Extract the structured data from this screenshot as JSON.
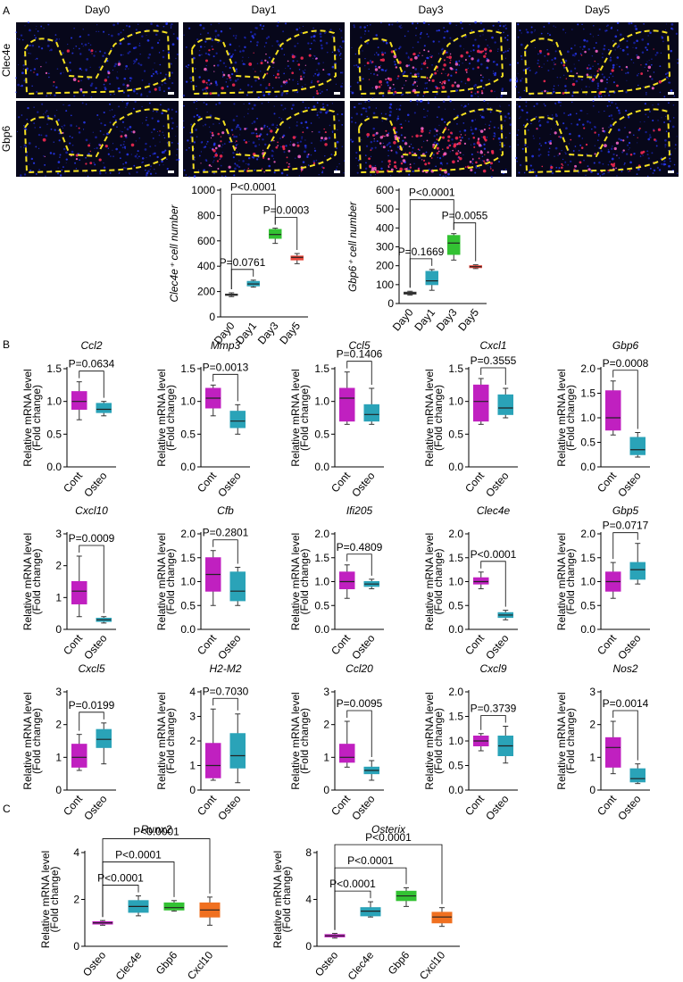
{
  "panel_labels": [
    "A",
    "B",
    "C"
  ],
  "microscopy": {
    "columns": [
      "Day0",
      "Day1",
      "Day3",
      "Day5"
    ],
    "rows": [
      "Clec4e",
      "Gbp6"
    ]
  },
  "chart_data": [
    {
      "type": "box",
      "ylabel": "Clec4e⁺ cell number",
      "categories": [
        "Day0",
        "Day1",
        "Day3",
        "Day5"
      ],
      "colors": [
        "#444444",
        "#2aa3b8",
        "#33c233",
        "#e8463a"
      ],
      "ylim": [
        0,
        1000
      ],
      "yticks": [
        0,
        200,
        400,
        600,
        800,
        1000
      ],
      "boxes": [
        {
          "min": 160,
          "q1": 170,
          "median": 175,
          "q3": 180,
          "max": 190
        },
        {
          "min": 235,
          "q1": 245,
          "median": 260,
          "q3": 280,
          "max": 290
        },
        {
          "min": 580,
          "q1": 620,
          "median": 650,
          "q3": 690,
          "max": 700
        },
        {
          "min": 420,
          "q1": 450,
          "median": 470,
          "q3": 480,
          "max": 500
        }
      ],
      "comparisons": [
        {
          "label": "P<0.0001",
          "between": [
            "Day0",
            "Day3"
          ]
        },
        {
          "label": "P=0.0761",
          "between": [
            "Day0",
            "Day1"
          ]
        },
        {
          "label": "P=0.0003",
          "between": [
            "Day3",
            "Day5"
          ]
        }
      ]
    },
    {
      "type": "box",
      "ylabel": "Gbp6⁺ cell number",
      "categories": [
        "Day0",
        "Day1",
        "Day3",
        "Day5"
      ],
      "colors": [
        "#444444",
        "#2aa3b8",
        "#33c233",
        "#e8463a"
      ],
      "ylim": [
        0,
        600
      ],
      "yticks": [
        0,
        100,
        200,
        300,
        400,
        500,
        600
      ],
      "boxes": [
        {
          "min": 45,
          "q1": 50,
          "median": 55,
          "q3": 60,
          "max": 65
        },
        {
          "min": 70,
          "q1": 100,
          "median": 120,
          "q3": 170,
          "max": 180
        },
        {
          "min": 230,
          "q1": 260,
          "median": 320,
          "q3": 360,
          "max": 370
        },
        {
          "min": 185,
          "q1": 190,
          "median": 195,
          "q3": 200,
          "max": 205
        }
      ],
      "comparisons": [
        {
          "label": "P<0.0001",
          "between": [
            "Day0",
            "Day3"
          ]
        },
        {
          "label": "P=0.1669",
          "between": [
            "Day0",
            "Day1"
          ]
        },
        {
          "label": "P=0.0055",
          "between": [
            "Day3",
            "Day5"
          ]
        }
      ]
    },
    {
      "type": "box",
      "title": "Ccl2",
      "ylabel": "Relative mRNA level",
      "ylabel_note": "(Fold change)",
      "categories": [
        "Cont",
        "Osteo"
      ],
      "colors": [
        "#c020c0",
        "#2aa3b8"
      ],
      "ylim": [
        0,
        1.5
      ],
      "yticks": [
        {
          "value": 0,
          "label": "0.0"
        },
        0.5,
        {
          "value": 1,
          "label": "1.0"
        },
        1.5
      ],
      "boxes": [
        {
          "min": 0.72,
          "q1": 0.88,
          "median": 1.0,
          "q3": 1.15,
          "max": 1.3
        },
        {
          "min": 0.78,
          "q1": 0.83,
          "median": 0.88,
          "q3": 0.97,
          "max": 1.0
        }
      ],
      "comparisons": [
        {
          "label": "P=0.0634",
          "between": [
            "Cont",
            "Osteo"
          ]
        }
      ]
    },
    {
      "type": "box",
      "title": "Mmp3",
      "ylabel": "Relative mRNA level",
      "ylabel_note": "(Fold change)",
      "categories": [
        "Cont",
        "Osteo"
      ],
      "colors": [
        "#c020c0",
        "#2aa3b8"
      ],
      "ylim": [
        0,
        1.5
      ],
      "yticks": [
        {
          "value": 0,
          "label": "0.0"
        },
        0.5,
        {
          "value": 1,
          "label": "1.0"
        },
        1.5
      ],
      "boxes": [
        {
          "min": 0.78,
          "q1": 0.9,
          "median": 1.05,
          "q3": 1.2,
          "max": 1.25
        },
        {
          "min": 0.5,
          "q1": 0.6,
          "median": 0.7,
          "q3": 0.85,
          "max": 0.95
        }
      ],
      "comparisons": [
        {
          "label": "P=0.0013",
          "between": [
            "Cont",
            "Osteo"
          ]
        }
      ]
    },
    {
      "type": "box",
      "title": "Ccl5",
      "ylabel": "Relative mRNA level",
      "ylabel_note": "(Fold change)",
      "categories": [
        "Cont",
        "Osteo"
      ],
      "colors": [
        "#c020c0",
        "#2aa3b8"
      ],
      "ylim": [
        0,
        1.5
      ],
      "yticks": [
        {
          "value": 0,
          "label": "0.0"
        },
        0.5,
        {
          "value": 1,
          "label": "1.0"
        },
        1.5
      ],
      "boxes": [
        {
          "min": 0.65,
          "q1": 0.7,
          "median": 1.05,
          "q3": 1.2,
          "max": 1.45
        },
        {
          "min": 0.65,
          "q1": 0.7,
          "median": 0.8,
          "q3": 0.95,
          "max": 1.2
        }
      ],
      "comparisons": [
        {
          "label": "P=0.1406",
          "between": [
            "Cont",
            "Osteo"
          ]
        }
      ]
    },
    {
      "type": "box",
      "title": "Cxcl1",
      "ylabel": "Relative mRNA level",
      "ylabel_note": "(Fold change)",
      "categories": [
        "Cont",
        "Osteo"
      ],
      "colors": [
        "#c020c0",
        "#2aa3b8"
      ],
      "ylim": [
        0,
        1.5
      ],
      "yticks": [
        {
          "value": 0,
          "label": "0.0"
        },
        0.5,
        {
          "value": 1,
          "label": "1.0"
        },
        1.5
      ],
      "boxes": [
        {
          "min": 0.65,
          "q1": 0.7,
          "median": 1.0,
          "q3": 1.25,
          "max": 1.35
        },
        {
          "min": 0.75,
          "q1": 0.8,
          "median": 0.9,
          "q3": 1.1,
          "max": 1.2
        }
      ],
      "comparisons": [
        {
          "label": "P=0.3555",
          "between": [
            "Cont",
            "Osteo"
          ]
        }
      ]
    },
    {
      "type": "box",
      "title": "Gbp6",
      "ylabel": "Relative mRNA level",
      "ylabel_note": "(Fold change)",
      "categories": [
        "Cont",
        "Osteo"
      ],
      "colors": [
        "#c020c0",
        "#2aa3b8"
      ],
      "ylim": [
        0,
        2
      ],
      "yticks": [
        {
          "value": 0,
          "label": "0.0"
        },
        0.5,
        {
          "value": 1,
          "label": "1.0"
        },
        1.5,
        {
          "value": 2,
          "label": "2.0"
        }
      ],
      "boxes": [
        {
          "min": 0.65,
          "q1": 0.75,
          "median": 1.0,
          "q3": 1.55,
          "max": 1.75
        },
        {
          "min": 0.2,
          "q1": 0.25,
          "median": 0.35,
          "q3": 0.6,
          "max": 0.7
        }
      ],
      "comparisons": [
        {
          "label": "P=0.0008",
          "between": [
            "Cont",
            "Osteo"
          ]
        }
      ]
    },
    {
      "type": "box",
      "title": "Cxcl10",
      "ylabel": "Relative mRNA level",
      "ylabel_note": "(Fold change)",
      "categories": [
        "Cont",
        "Osteo"
      ],
      "colors": [
        "#c020c0",
        "#2aa3b8"
      ],
      "ylim": [
        0,
        3
      ],
      "yticks": [
        0,
        1,
        2,
        3
      ],
      "boxes": [
        {
          "min": 0.4,
          "q1": 0.8,
          "median": 1.2,
          "q3": 1.5,
          "max": 2.3
        },
        {
          "min": 0.2,
          "q1": 0.25,
          "median": 0.3,
          "q3": 0.35,
          "max": 0.4
        }
      ],
      "comparisons": [
        {
          "label": "P=0.0009",
          "between": [
            "Cont",
            "Osteo"
          ]
        }
      ]
    },
    {
      "type": "box",
      "title": "Cfb",
      "ylabel": "Relative mRNA level",
      "ylabel_note": "(Fold change)",
      "categories": [
        "Cont",
        "Osteo"
      ],
      "colors": [
        "#c020c0",
        "#2aa3b8"
      ],
      "ylim": [
        0,
        2
      ],
      "yticks": [
        {
          "value": 0,
          "label": "0.0"
        },
        0.5,
        {
          "value": 1,
          "label": "1.0"
        },
        1.5,
        {
          "value": 2,
          "label": "2.0"
        }
      ],
      "boxes": [
        {
          "min": 0.5,
          "q1": 0.8,
          "median": 1.15,
          "q3": 1.5,
          "max": 1.65
        },
        {
          "min": 0.5,
          "q1": 0.6,
          "median": 0.8,
          "q3": 1.2,
          "max": 1.3
        }
      ],
      "comparisons": [
        {
          "label": "P=0.2801",
          "between": [
            "Cont",
            "Osteo"
          ]
        }
      ]
    },
    {
      "type": "box",
      "title": "Ifi205",
      "ylabel": "Relative mRNA level",
      "ylabel_note": "(Fold change)",
      "categories": [
        "Cont",
        "Osteo"
      ],
      "colors": [
        "#c020c0",
        "#2aa3b8"
      ],
      "ylim": [
        0,
        2
      ],
      "yticks": [
        {
          "value": 0,
          "label": "0.0"
        },
        0.5,
        {
          "value": 1,
          "label": "1.0"
        },
        1.5,
        {
          "value": 2,
          "label": "2.0"
        }
      ],
      "boxes": [
        {
          "min": 0.65,
          "q1": 0.85,
          "median": 1.0,
          "q3": 1.2,
          "max": 1.35
        },
        {
          "min": 0.85,
          "q1": 0.9,
          "median": 0.95,
          "q3": 1.0,
          "max": 1.05
        }
      ],
      "comparisons": [
        {
          "label": "P=0.4809",
          "between": [
            "Cont",
            "Osteo"
          ]
        }
      ]
    },
    {
      "type": "box",
      "title": "Clec4e",
      "ylabel": "Relative mRNA level",
      "ylabel_note": "(Fold change)",
      "categories": [
        "Cont",
        "Osteo"
      ],
      "colors": [
        "#c020c0",
        "#2aa3b8"
      ],
      "ylim": [
        0,
        2
      ],
      "yticks": [
        {
          "value": 0,
          "label": "0.0"
        },
        0.5,
        {
          "value": 1,
          "label": "1.0"
        },
        1.5,
        {
          "value": 2,
          "label": "2.0"
        }
      ],
      "boxes": [
        {
          "min": 0.85,
          "q1": 0.95,
          "median": 1.0,
          "q3": 1.08,
          "max": 1.2
        },
        {
          "min": 0.2,
          "q1": 0.25,
          "median": 0.3,
          "q3": 0.35,
          "max": 0.4
        }
      ],
      "comparisons": [
        {
          "label": "P<0.0001",
          "between": [
            "Cont",
            "Osteo"
          ]
        }
      ]
    },
    {
      "type": "box",
      "title": "Gbp5",
      "ylabel": "Relative mRNA level",
      "ylabel_note": "(Fold change)",
      "categories": [
        "Cont",
        "Osteo"
      ],
      "colors": [
        "#c020c0",
        "#2aa3b8"
      ],
      "ylim": [
        0,
        2
      ],
      "yticks": [
        {
          "value": 0,
          "label": "0.0"
        },
        0.5,
        {
          "value": 1,
          "label": "1.0"
        },
        1.5,
        {
          "value": 2,
          "label": "2.0"
        }
      ],
      "boxes": [
        {
          "min": 0.65,
          "q1": 0.8,
          "median": 1.0,
          "q3": 1.2,
          "max": 1.4
        },
        {
          "min": 0.95,
          "q1": 1.05,
          "median": 1.25,
          "q3": 1.4,
          "max": 1.8
        }
      ],
      "comparisons": [
        {
          "label": "P=0.0717",
          "between": [
            "Cont",
            "Osteo"
          ]
        }
      ]
    },
    {
      "type": "box",
      "title": "Cxcl5",
      "ylabel": "Relative mRNA level",
      "ylabel_note": "(Fold change)",
      "categories": [
        "Cont",
        "Osteo"
      ],
      "colors": [
        "#c020c0",
        "#2aa3b8"
      ],
      "ylim": [
        0,
        3
      ],
      "yticks": [
        0,
        1,
        2,
        3
      ],
      "boxes": [
        {
          "min": 0.6,
          "q1": 0.7,
          "median": 1.0,
          "q3": 1.4,
          "max": 1.7
        },
        {
          "min": 0.8,
          "q1": 1.3,
          "median": 1.55,
          "q3": 1.85,
          "max": 2.05
        }
      ],
      "comparisons": [
        {
          "label": "P=0.0199",
          "between": [
            "Cont",
            "Osteo"
          ]
        }
      ]
    },
    {
      "type": "box",
      "title": "H2-M2",
      "ylabel": "Relative mRNA level",
      "ylabel_note": "(Fold change)",
      "categories": [
        "Cont",
        "Osteo"
      ],
      "colors": [
        "#c020c0",
        "#2aa3b8"
      ],
      "ylim": [
        0,
        4
      ],
      "yticks": [
        0,
        1,
        2,
        3,
        4
      ],
      "boxes": [
        {
          "min": 0.4,
          "q1": 0.5,
          "median": 1.0,
          "q3": 1.9,
          "max": 3.3
        },
        {
          "min": 0.3,
          "q1": 0.9,
          "median": 1.4,
          "q3": 2.3,
          "max": 3.1
        }
      ],
      "comparisons": [
        {
          "label": "P=0.7030",
          "between": [
            "Cont",
            "Osteo"
          ]
        }
      ]
    },
    {
      "type": "box",
      "title": "Ccl20",
      "ylabel": "Relative mRNA level",
      "ylabel_note": "(Fold change)",
      "categories": [
        "Cont",
        "Osteo"
      ],
      "colors": [
        "#c020c0",
        "#2aa3b8"
      ],
      "ylim": [
        0,
        3
      ],
      "yticks": [
        0,
        1,
        2,
        3
      ],
      "boxes": [
        {
          "min": 0.7,
          "q1": 0.85,
          "median": 1.0,
          "q3": 1.4,
          "max": 2.1
        },
        {
          "min": 0.3,
          "q1": 0.5,
          "median": 0.6,
          "q3": 0.7,
          "max": 0.9
        }
      ],
      "comparisons": [
        {
          "label": "P=0.0095",
          "between": [
            "Cont",
            "Osteo"
          ]
        }
      ]
    },
    {
      "type": "box",
      "title": "Cxcl9",
      "ylabel": "Relative mRNA level",
      "ylabel_note": "(Fold change)",
      "categories": [
        "Cont",
        "Osteo"
      ],
      "colors": [
        "#c020c0",
        "#2aa3b8"
      ],
      "ylim": [
        0,
        2
      ],
      "yticks": [
        {
          "value": 0,
          "label": "0.0"
        },
        0.5,
        {
          "value": 1,
          "label": "1.0"
        },
        1.5,
        {
          "value": 2,
          "label": "2.0"
        }
      ],
      "boxes": [
        {
          "min": 0.8,
          "q1": 0.9,
          "median": 1.0,
          "q3": 1.1,
          "max": 1.15
        },
        {
          "min": 0.55,
          "q1": 0.7,
          "median": 0.9,
          "q3": 1.1,
          "max": 1.3
        }
      ],
      "comparisons": [
        {
          "label": "P=0.3739",
          "between": [
            "Cont",
            "Osteo"
          ]
        }
      ]
    },
    {
      "type": "box",
      "title": "Nos2",
      "ylabel": "Relative mRNA level",
      "ylabel_note": "(Fold change)",
      "categories": [
        "Cont",
        "Osteo"
      ],
      "colors": [
        "#c020c0",
        "#2aa3b8"
      ],
      "ylim": [
        0,
        3
      ],
      "yticks": [
        0,
        1,
        2,
        3
      ],
      "boxes": [
        {
          "min": 0.5,
          "q1": 0.7,
          "median": 1.3,
          "q3": 1.6,
          "max": 2.1
        },
        {
          "min": 0.2,
          "q1": 0.25,
          "median": 0.35,
          "q3": 0.65,
          "max": 0.8
        }
      ],
      "comparisons": [
        {
          "label": "P=0.0014",
          "between": [
            "Cont",
            "Osteo"
          ]
        }
      ]
    },
    {
      "type": "box",
      "title": "Runx2",
      "ylabel": "Relative mRNA level",
      "ylabel_note": "(Fold change)",
      "categories": [
        "Osteo",
        "Clec4e",
        "Gbp6",
        "Cxcl10"
      ],
      "colors": [
        "#c020c0",
        "#2aa3b8",
        "#33c233",
        "#f07020"
      ],
      "ylim": [
        0,
        4
      ],
      "yticks": [
        0,
        2,
        4
      ],
      "boxes": [
        {
          "min": 0.9,
          "q1": 0.95,
          "median": 1.0,
          "q3": 1.05,
          "max": 1.1
        },
        {
          "min": 1.3,
          "q1": 1.45,
          "median": 1.7,
          "q3": 1.95,
          "max": 2.15
        },
        {
          "min": 1.5,
          "q1": 1.55,
          "median": 1.65,
          "q3": 1.85,
          "max": 1.95
        },
        {
          "min": 0.9,
          "q1": 1.25,
          "median": 1.55,
          "q3": 1.85,
          "max": 2.1
        }
      ],
      "comparisons": [
        {
          "label": "P<0.0001",
          "between": [
            "Osteo",
            "Clec4e"
          ]
        },
        {
          "label": "P<0.0001",
          "between": [
            "Osteo",
            "Gbp6"
          ]
        },
        {
          "label": "P<0.0001",
          "between": [
            "Osteo",
            "Cxcl10"
          ]
        }
      ]
    },
    {
      "type": "box",
      "title": "Osterix",
      "ylabel": "Relative mRNA level",
      "ylabel_note": "(Fold change)",
      "categories": [
        "Osteo",
        "Clec4e",
        "Gbp6",
        "Cxcl10"
      ],
      "colors": [
        "#c020c0",
        "#2aa3b8",
        "#33c233",
        "#f07020"
      ],
      "ylim": [
        0,
        8
      ],
      "yticks": [
        0,
        4,
        8
      ],
      "boxes": [
        {
          "min": 0.7,
          "q1": 0.8,
          "median": 0.9,
          "q3": 1.0,
          "max": 1.1
        },
        {
          "min": 2.5,
          "q1": 2.6,
          "median": 3.0,
          "q3": 3.3,
          "max": 3.8
        },
        {
          "min": 3.4,
          "q1": 3.9,
          "median": 4.3,
          "q3": 4.7,
          "max": 5.0
        },
        {
          "min": 1.7,
          "q1": 2.0,
          "median": 2.5,
          "q3": 2.9,
          "max": 3.3
        }
      ],
      "comparisons": [
        {
          "label": "P<0.0001",
          "between": [
            "Osteo",
            "Clec4e"
          ]
        },
        {
          "label": "P<0.0001",
          "between": [
            "Osteo",
            "Gbp6"
          ]
        },
        {
          "label": "P<0.0001",
          "between": [
            "Osteo",
            "Cxcl10"
          ]
        }
      ]
    }
  ]
}
